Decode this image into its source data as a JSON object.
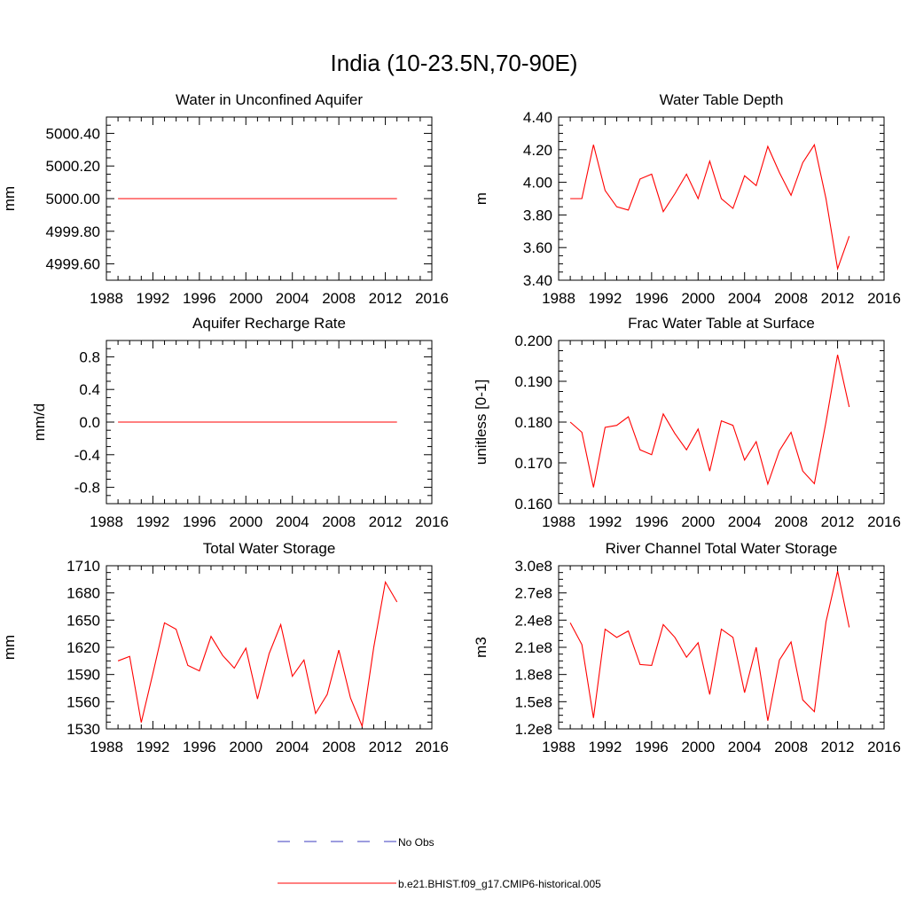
{
  "title": "India (10-23.5N,70-90E)",
  "legend": {
    "placement": "bottom-center",
    "items": [
      {
        "label": "No Obs",
        "style": "dashed",
        "color": "#3b3bbf"
      },
      {
        "label": "b.e21.BHIST.f09_g17.CMIP6-historical.005",
        "style": "solid",
        "color": "#ff0000"
      }
    ]
  },
  "chart_data": [
    {
      "type": "line",
      "title": "Water in Unconfined Aquifer",
      "xlabel": "",
      "ylabel": "mm",
      "xlim": [
        1988,
        2016
      ],
      "ylim": [
        4999.5,
        5000.5
      ],
      "xticks": [
        1988,
        1992,
        1996,
        2000,
        2004,
        2008,
        2012,
        2016
      ],
      "xtick_labels": [
        "1988",
        "1992",
        "1996",
        "2000",
        "2004",
        "2008",
        "2012",
        "2016"
      ],
      "yticks": [
        4999.6,
        4999.8,
        5000.0,
        5000.2,
        5000.4
      ],
      "ytick_labels": [
        "4999.60",
        "4999.80",
        "5000.00",
        "5000.20",
        "5000.40"
      ],
      "x": [
        1989,
        1990,
        1991,
        1992,
        1993,
        1994,
        1995,
        1996,
        1997,
        1998,
        1999,
        2000,
        2001,
        2002,
        2003,
        2004,
        2005,
        2006,
        2007,
        2008,
        2009,
        2010,
        2011,
        2012,
        2013
      ],
      "series": [
        {
          "name": "b.e21.BHIST.f09_g17.CMIP6-historical.005",
          "color": "#ff0000",
          "values": [
            5000,
            5000,
            5000,
            5000,
            5000,
            5000,
            5000,
            5000,
            5000,
            5000,
            5000,
            5000,
            5000,
            5000,
            5000,
            5000,
            5000,
            5000,
            5000,
            5000,
            5000,
            5000,
            5000,
            5000,
            5000
          ]
        }
      ]
    },
    {
      "type": "line",
      "title": "Water Table Depth",
      "xlabel": "",
      "ylabel": "m",
      "xlim": [
        1988,
        2016
      ],
      "ylim": [
        3.4,
        4.4
      ],
      "xticks": [
        1988,
        1992,
        1996,
        2000,
        2004,
        2008,
        2012,
        2016
      ],
      "xtick_labels": [
        "1988",
        "1992",
        "1996",
        "2000",
        "2004",
        "2008",
        "2012",
        "2016"
      ],
      "yticks": [
        3.4,
        3.6,
        3.8,
        4.0,
        4.2,
        4.4
      ],
      "ytick_labels": [
        "3.40",
        "3.60",
        "3.80",
        "4.00",
        "4.20",
        "4.40"
      ],
      "x": [
        1989,
        1990,
        1991,
        1992,
        1993,
        1994,
        1995,
        1996,
        1997,
        1998,
        1999,
        2000,
        2001,
        2002,
        2003,
        2004,
        2005,
        2006,
        2007,
        2008,
        2009,
        2010,
        2011,
        2012,
        2013
      ],
      "series": [
        {
          "name": "b.e21.BHIST.f09_g17.CMIP6-historical.005",
          "color": "#ff0000",
          "values": [
            3.9,
            3.9,
            4.23,
            3.95,
            3.85,
            3.83,
            4.02,
            4.05,
            3.82,
            3.93,
            4.05,
            3.9,
            4.13,
            3.9,
            3.84,
            4.04,
            3.98,
            4.22,
            4.06,
            3.92,
            4.12,
            4.23,
            3.9,
            3.47,
            3.67
          ]
        }
      ]
    },
    {
      "type": "line",
      "title": "Aquifer Recharge Rate",
      "xlabel": "",
      "ylabel": "mm/d",
      "xlim": [
        1988,
        2016
      ],
      "ylim": [
        -1.0,
        1.0
      ],
      "xticks": [
        1988,
        1992,
        1996,
        2000,
        2004,
        2008,
        2012,
        2016
      ],
      "xtick_labels": [
        "1988",
        "1992",
        "1996",
        "2000",
        "2004",
        "2008",
        "2012",
        "2016"
      ],
      "yticks": [
        -0.8,
        -0.4,
        0.0,
        0.4,
        0.8
      ],
      "ytick_labels": [
        "-0.8",
        "-0.4",
        "0.0",
        "0.4",
        "0.8"
      ],
      "x": [
        1989,
        1990,
        1991,
        1992,
        1993,
        1994,
        1995,
        1996,
        1997,
        1998,
        1999,
        2000,
        2001,
        2002,
        2003,
        2004,
        2005,
        2006,
        2007,
        2008,
        2009,
        2010,
        2011,
        2012,
        2013
      ],
      "series": [
        {
          "name": "b.e21.BHIST.f09_g17.CMIP6-historical.005",
          "color": "#ff0000",
          "values": [
            0,
            0,
            0,
            0,
            0,
            0,
            0,
            0,
            0,
            0,
            0,
            0,
            0,
            0,
            0,
            0,
            0,
            0,
            0,
            0,
            0,
            0,
            0,
            0,
            0
          ]
        }
      ]
    },
    {
      "type": "line",
      "title": "Frac Water Table at Surface",
      "xlabel": "",
      "ylabel": "unitless [0-1]",
      "xlim": [
        1988,
        2016
      ],
      "ylim": [
        0.16,
        0.2
      ],
      "xticks": [
        1988,
        1992,
        1996,
        2000,
        2004,
        2008,
        2012,
        2016
      ],
      "xtick_labels": [
        "1988",
        "1992",
        "1996",
        "2000",
        "2004",
        "2008",
        "2012",
        "2016"
      ],
      "yticks": [
        0.16,
        0.17,
        0.18,
        0.19,
        0.2
      ],
      "ytick_labels": [
        "0.160",
        "0.170",
        "0.180",
        "0.190",
        "0.200"
      ],
      "x": [
        1989,
        1990,
        1991,
        1992,
        1993,
        1994,
        1995,
        1996,
        1997,
        1998,
        1999,
        2000,
        2001,
        2002,
        2003,
        2004,
        2005,
        2006,
        2007,
        2008,
        2009,
        2010,
        2011,
        2012,
        2013
      ],
      "series": [
        {
          "name": "b.e21.BHIST.f09_g17.CMIP6-historical.005",
          "color": "#ff0000",
          "values": [
            0.18,
            0.1775,
            0.164,
            0.1787,
            0.1792,
            0.1813,
            0.1732,
            0.172,
            0.182,
            0.1772,
            0.1732,
            0.1783,
            0.168,
            0.1803,
            0.1792,
            0.1707,
            0.1752,
            0.1648,
            0.173,
            0.1775,
            0.168,
            0.1649,
            0.18,
            0.1965,
            0.1837
          ]
        }
      ]
    },
    {
      "type": "line",
      "title": "Total Water Storage",
      "xlabel": "",
      "ylabel": "mm",
      "xlim": [
        1988,
        2016
      ],
      "ylim": [
        1530,
        1710
      ],
      "xticks": [
        1988,
        1992,
        1996,
        2000,
        2004,
        2008,
        2012,
        2016
      ],
      "xtick_labels": [
        "1988",
        "1992",
        "1996",
        "2000",
        "2004",
        "2008",
        "2012",
        "2016"
      ],
      "yticks": [
        1530,
        1560,
        1590,
        1620,
        1650,
        1680,
        1710
      ],
      "ytick_labels": [
        "1530",
        "1560",
        "1590",
        "1620",
        "1650",
        "1680",
        "1710"
      ],
      "x": [
        1989,
        1990,
        1991,
        1992,
        1993,
        1994,
        1995,
        1996,
        1997,
        1998,
        1999,
        2000,
        2001,
        2002,
        2003,
        2004,
        2005,
        2006,
        2007,
        2008,
        2009,
        2010,
        2011,
        2012,
        2013
      ],
      "series": [
        {
          "name": "b.e21.BHIST.f09_g17.CMIP6-historical.005",
          "color": "#ff0000",
          "values": [
            1605,
            1610,
            1537,
            1591,
            1647,
            1640,
            1600,
            1594,
            1632,
            1611,
            1597,
            1619,
            1563,
            1613,
            1645,
            1588,
            1606,
            1547,
            1568,
            1617,
            1564,
            1533,
            1620,
            1692,
            1670
          ]
        }
      ]
    },
    {
      "type": "line",
      "title": "River Channel Total Water Storage",
      "xlabel": "",
      "ylabel": "m3",
      "xlim": [
        1988,
        2016
      ],
      "ylim": [
        120000000.0,
        300000000.0
      ],
      "xticks": [
        1988,
        1992,
        1996,
        2000,
        2004,
        2008,
        2012,
        2016
      ],
      "xtick_labels": [
        "1988",
        "1992",
        "1996",
        "2000",
        "2004",
        "2008",
        "2012",
        "2016"
      ],
      "yticks": [
        120000000.0,
        150000000.0,
        180000000.0,
        210000000.0,
        240000000.0,
        270000000.0,
        300000000.0
      ],
      "ytick_labels": [
        "1.2e8",
        "1.5e8",
        "1.8e8",
        "2.1e8",
        "2.4e8",
        "2.7e8",
        "3.0e8"
      ],
      "x": [
        1989,
        1990,
        1991,
        1992,
        1993,
        1994,
        1995,
        1996,
        1997,
        1998,
        1999,
        2000,
        2001,
        2002,
        2003,
        2004,
        2005,
        2006,
        2007,
        2008,
        2009,
        2010,
        2011,
        2012,
        2013
      ],
      "series": [
        {
          "name": "b.e21.BHIST.f09_g17.CMIP6-historical.005",
          "color": "#ff0000",
          "values": [
            237000000.0,
            213000000.0,
            132000000.0,
            230000000.0,
            221000000.0,
            228000000.0,
            191000000.0,
            190000000.0,
            235000000.0,
            221000000.0,
            199000000.0,
            215000000.0,
            158000000.0,
            230000000.0,
            221000000.0,
            160000000.0,
            210000000.0,
            129000000.0,
            196000000.0,
            216000000.0,
            152000000.0,
            139000000.0,
            238000000.0,
            294000000.0,
            232000000.0
          ]
        }
      ]
    }
  ]
}
